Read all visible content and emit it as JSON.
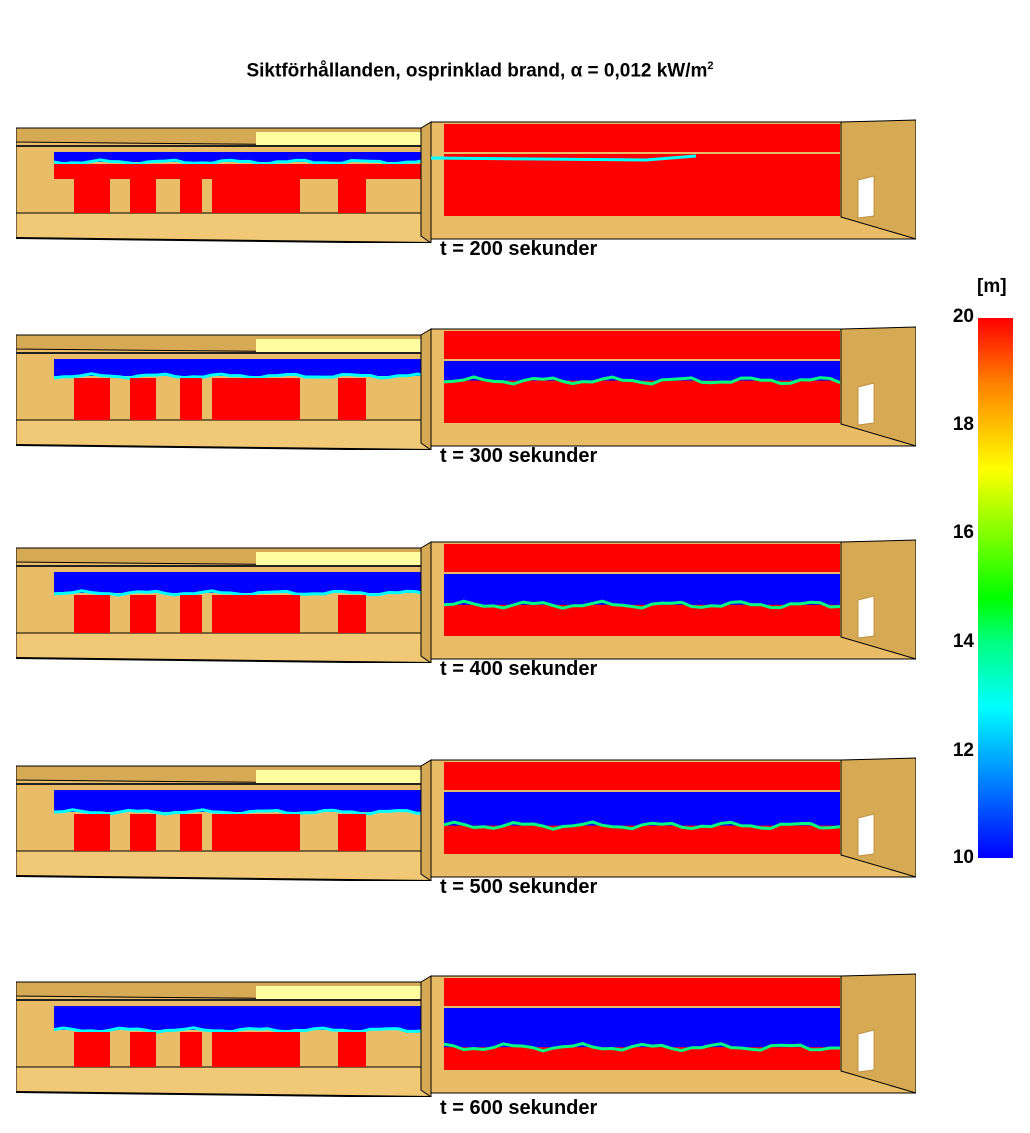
{
  "figure": {
    "title_main": "Siktförhållanden, osprinklad brand, α = 0,012 kW/m",
    "title_sup": "2"
  },
  "frames": [
    {
      "caption": "t = 200 sekunder",
      "interface_level": 0.0
    },
    {
      "caption": "t = 300 sekunder",
      "interface_level": 0.35
    },
    {
      "caption": "t = 400 sekunder",
      "interface_level": 0.55
    },
    {
      "caption": "t = 500 sekunder",
      "interface_level": 0.6
    },
    {
      "caption": "t = 600 sekunder",
      "interface_level": 0.7
    }
  ],
  "colorbar": {
    "unit_label": "[m]",
    "ticks": [
      "20",
      "18",
      "16",
      "14",
      "12",
      "10"
    ],
    "colors": {
      "max": "#ff0000",
      "min": "#0000ff"
    }
  },
  "palette": {
    "wall": "#e9bd68",
    "wall_dark": "#d6a955",
    "visible_color": "#ff0000",
    "smoke_color": "#0000ff",
    "skylight": "#ffffa0",
    "door": "#ffffff"
  }
}
